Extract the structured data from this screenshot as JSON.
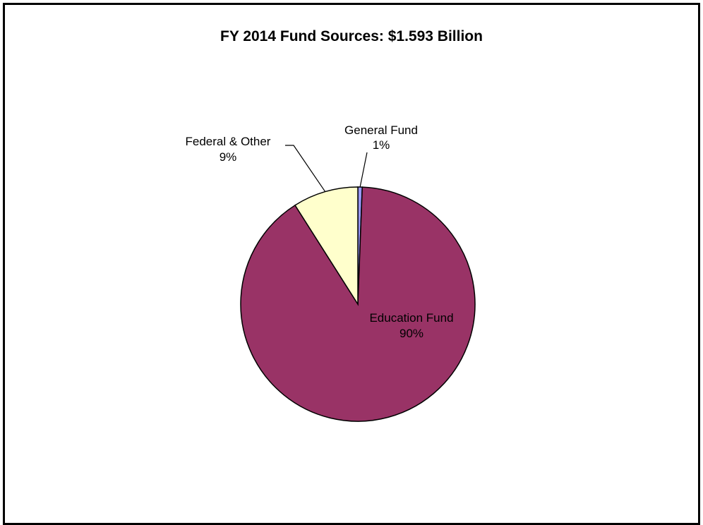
{
  "chart_data": {
    "type": "pie",
    "title": "FY 2014 Fund Sources: $1.593 Billion",
    "slices": [
      {
        "name": "General Fund",
        "value": 0.6,
        "label_pct": "1%",
        "color": "#9999ff"
      },
      {
        "name": "Education Fund",
        "value": 90.4,
        "label_pct": "90%",
        "color": "#993366"
      },
      {
        "name": "Federal & Other",
        "value": 9.0,
        "label_pct": "9%",
        "color": "#ffffcc"
      }
    ],
    "start_angle": "12 o'clock, clockwise",
    "legend": "none"
  }
}
